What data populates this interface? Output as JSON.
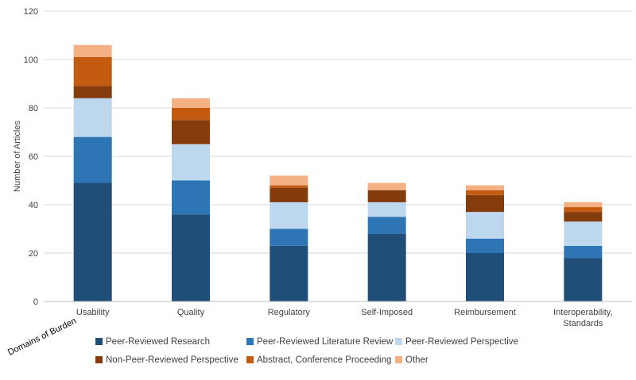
{
  "chart_data": {
    "type": "bar",
    "stacked": true,
    "title": "",
    "ylabel": "Number of Articles",
    "xlabel": "Domains of Burden",
    "ylim": [
      0,
      120
    ],
    "yticks": [
      0,
      20,
      40,
      60,
      80,
      100,
      120
    ],
    "categories": [
      "Usability",
      "Quality",
      "Regulatory",
      "Self-Imposed",
      "Reimbursement",
      "Interoperability, Standards"
    ],
    "series": [
      {
        "name": "Peer-Reviewed Research",
        "color": "#1f4e79",
        "values": [
          49,
          36,
          23,
          28,
          20,
          18
        ]
      },
      {
        "name": "Peer-Reviewed Literature Review",
        "color": "#2e75b6",
        "values": [
          19,
          14,
          7,
          7,
          6,
          5
        ]
      },
      {
        "name": "Peer-Reviewed Perspective",
        "color": "#bdd7ee",
        "values": [
          16,
          15,
          11,
          6,
          11,
          10
        ]
      },
      {
        "name": "Non-Peer-Reviewed Perspective",
        "color": "#843c0c",
        "values": [
          5,
          10,
          6,
          5,
          7,
          4
        ]
      },
      {
        "name": "Abstract, Conference Proceeding",
        "color": "#c55a11",
        "values": [
          12,
          5,
          1,
          0,
          2,
          2
        ]
      },
      {
        "name": "Other",
        "color": "#f4b183",
        "values": [
          5,
          4,
          4,
          3,
          2,
          2
        ]
      }
    ],
    "grid": true,
    "legend_position": "bottom"
  }
}
